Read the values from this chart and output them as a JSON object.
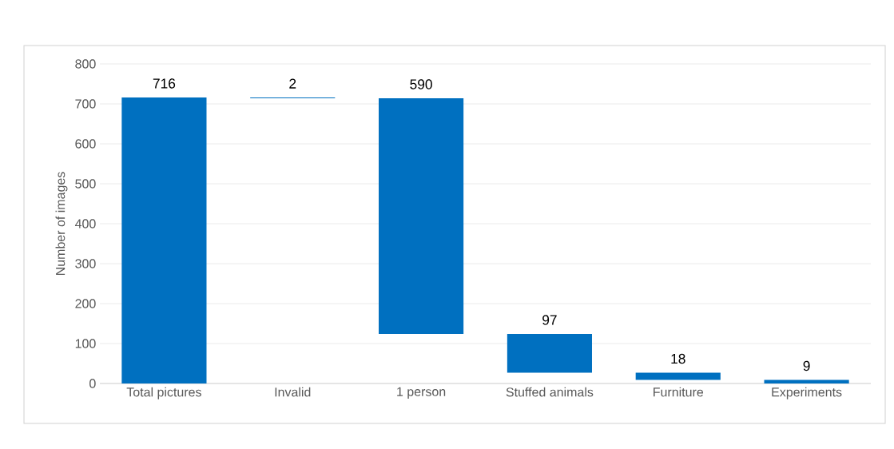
{
  "chart_data": {
    "type": "bar",
    "ylabel": "Number of images",
    "categories": [
      "Total pictures",
      "Invalid",
      "1 person",
      "Stuffed animals",
      "Furniture",
      "Experiments"
    ],
    "values": [
      716,
      2,
      590,
      97,
      18,
      9
    ],
    "base": [
      0,
      714,
      124,
      27,
      9,
      0
    ],
    "color": "#0070c0",
    "data_labels": true,
    "ylim": [
      0,
      800
    ],
    "yticks": [
      0,
      100,
      200,
      300,
      400,
      500,
      600,
      700,
      800
    ],
    "grid": "y"
  }
}
